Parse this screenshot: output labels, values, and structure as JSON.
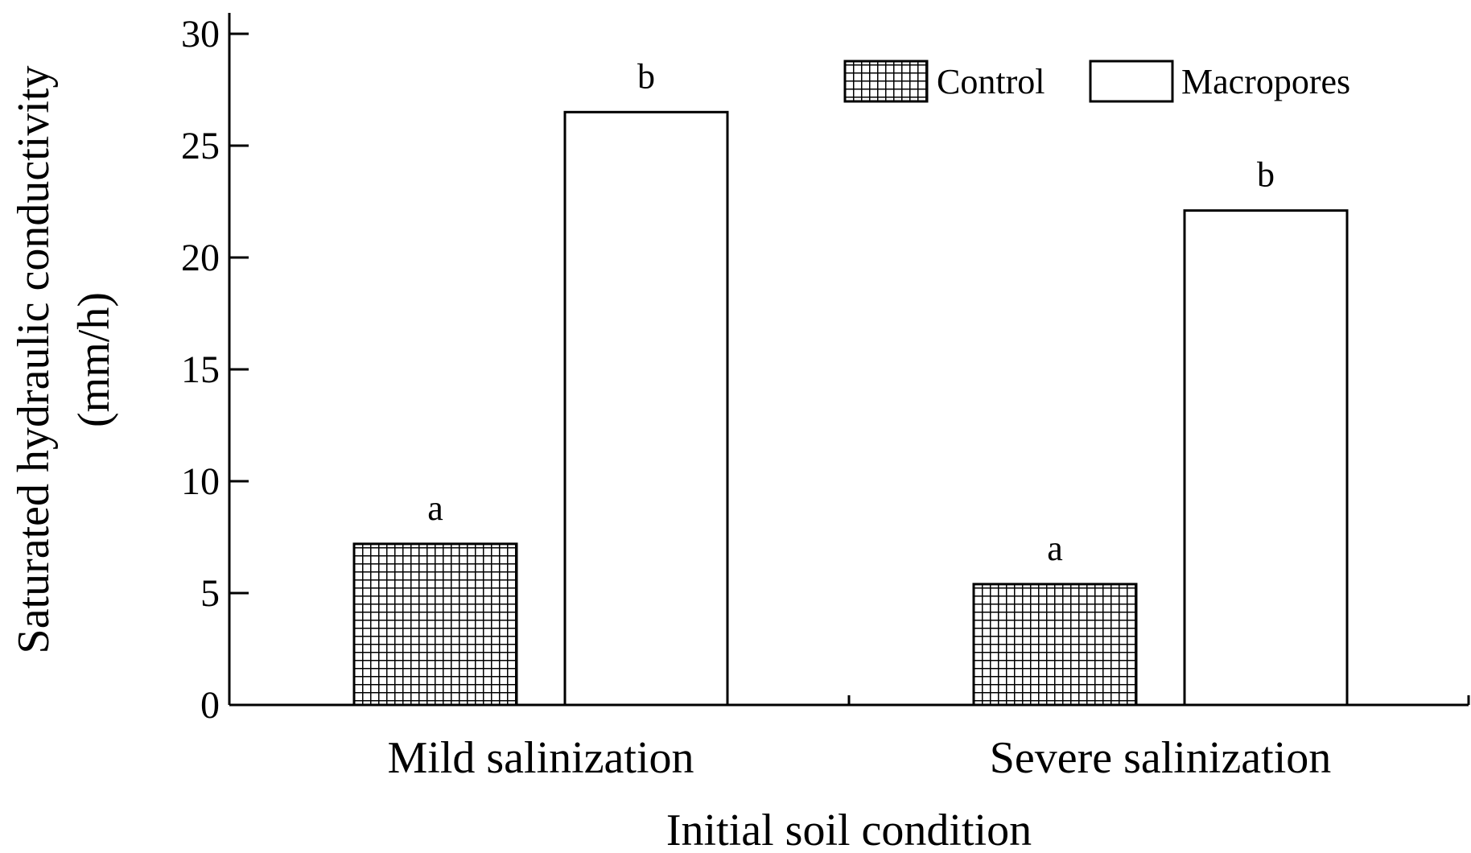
{
  "chart_data": {
    "type": "bar",
    "title": "",
    "xlabel": "Initial soil condition",
    "ylabel": "Saturated hydraulic conductivity",
    "ylabel_unit": "(mm/h)",
    "categories": [
      "Mild salinization",
      "Severe salinization"
    ],
    "series": [
      {
        "name": "Control",
        "values": [
          7.2,
          5.4
        ],
        "significance": [
          "a",
          "a"
        ],
        "fill": "crosshatch"
      },
      {
        "name": "Macropores",
        "values": [
          26.5,
          22.1
        ],
        "significance": [
          "b",
          "b"
        ],
        "fill": "#ffffff"
      }
    ],
    "ylim": [
      0,
      30
    ],
    "yticks": [
      0,
      5,
      10,
      15,
      20,
      25,
      30
    ],
    "legend_position": "top-right",
    "grid": false,
    "colors": {
      "axis": "#000000",
      "bar_edge": "#000000",
      "hatch": "#000000",
      "background": "#ffffff"
    }
  }
}
